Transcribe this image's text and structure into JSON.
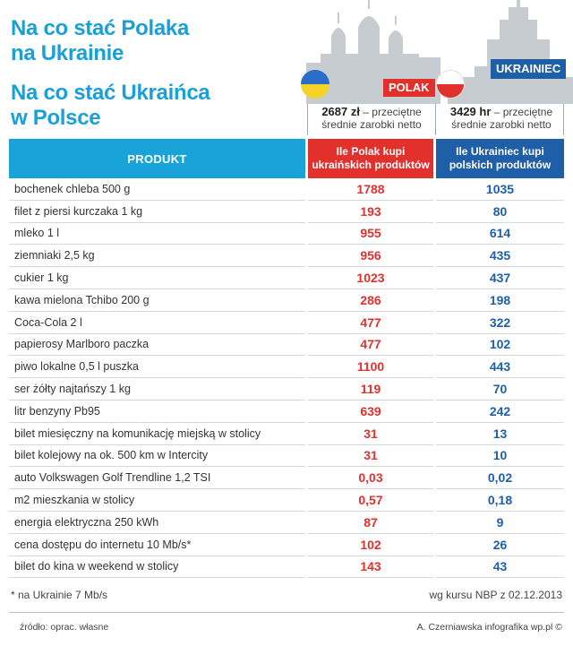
{
  "title_pl": [
    "Na co stać Polaka",
    "na Ukrainie"
  ],
  "title_ua": [
    "Na co stać Ukraińca",
    "w Polsce"
  ],
  "tags": {
    "polak": "POLAK",
    "ukrainiec": "UKRAINIEC"
  },
  "income": {
    "pl_amount": "2687 zł",
    "pl_text1": " – przeciętne",
    "pl_text2": "średnie zarobki netto",
    "ua_amount": "3429 hr",
    "ua_text1": " – przeciętne",
    "ua_text2": "średnie zarobki netto"
  },
  "table": {
    "header_product": "PRODUKT",
    "header_pl": [
      "Ile Polak kupi",
      "ukraińskich produktów"
    ],
    "header_ua": [
      "Ile Ukrainiec kupi",
      "polskich produktów"
    ],
    "rows": [
      {
        "name": "bochenek chleba 500 g",
        "pl": "1788",
        "ua": "1035"
      },
      {
        "name": "filet z piersi kurczaka 1 kg",
        "pl": "193",
        "ua": "80"
      },
      {
        "name": "mleko 1 l",
        "pl": "955",
        "ua": "614"
      },
      {
        "name": "ziemniaki 2,5 kg",
        "pl": "956",
        "ua": "435"
      },
      {
        "name": "cukier 1 kg",
        "pl": "1023",
        "ua": "437"
      },
      {
        "name": "kawa mielona Tchibo 200 g",
        "pl": "286",
        "ua": "198"
      },
      {
        "name": "Coca-Cola 2 l",
        "pl": "477",
        "ua": "322"
      },
      {
        "name": "papierosy Marlboro paczka",
        "pl": "477",
        "ua": "102"
      },
      {
        "name": "piwo lokalne 0,5 l puszka",
        "pl": "1100",
        "ua": "443"
      },
      {
        "name": "ser żółty najtańszy 1 kg",
        "pl": "119",
        "ua": "70"
      },
      {
        "name": "litr benzyny Pb95",
        "pl": "639",
        "ua": "242"
      },
      {
        "name": "bilet miesięczny na komunikację miejską w stolicy",
        "pl": "31",
        "ua": "13"
      },
      {
        "name": "bilet kolejowy na ok. 500 km w Intercity",
        "pl": "31",
        "ua": "10"
      },
      {
        "name": "auto Volkswagen Golf Trendline 1,2 TSI",
        "pl": "0,03",
        "ua": "0,02"
      },
      {
        "name": "m2 mieszkania w stolicy",
        "pl": "0,57",
        "ua": "0,18"
      },
      {
        "name": "energia elektryczna 250 kWh",
        "pl": "87",
        "ua": "9"
      },
      {
        "name": "cena dostępu do internetu 10 Mb/s*",
        "pl": "102",
        "ua": "26"
      },
      {
        "name": "bilet do kina w weekend w stolicy",
        "pl": "143",
        "ua": "43"
      }
    ]
  },
  "notes": {
    "footnote": "* na Ukrainie 7 Mb/s",
    "rate": "wg kursu NBP z 02.12.2013",
    "source": "źródło: oprac. własne",
    "credit": "A. Czerniawska infografika wp.pl ©"
  },
  "colors": {
    "accent": "#19a3d9",
    "polak": "#e2312d",
    "ukrainiec": "#1e5fa8"
  }
}
